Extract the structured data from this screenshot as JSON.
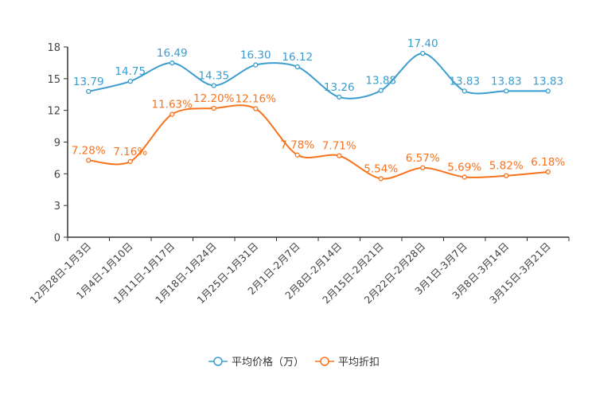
{
  "chart_data": {
    "type": "line",
    "title": "",
    "xlabel": "",
    "ylabel": "",
    "ylim": [
      0,
      18
    ],
    "yticks": [
      "0",
      "3",
      "6",
      "9",
      "12",
      "15",
      "18"
    ],
    "grid": false,
    "legend_position": "bottom",
    "categories": [
      "12月28日-1月3日",
      "1月4日-1月10日",
      "1月11日-1月17日",
      "1月18日-1月24日",
      "1月25日-1月31日",
      "2月1日-2月7日",
      "2月8日-2月14日",
      "2月15日-2月21日",
      "2月22日-2月28日",
      "3月1日-3月7日",
      "3月8日-3月14日",
      "3月15日-3月21日"
    ],
    "series": [
      {
        "name": "平均价格（万）",
        "color": "#3a9dd0",
        "values": [
          13.79,
          14.75,
          16.49,
          14.35,
          16.3,
          16.12,
          13.26,
          13.88,
          17.4,
          13.83,
          13.83,
          13.83
        ],
        "labels": [
          "13.79",
          "14.75",
          "16.49",
          "14.35",
          "16.30",
          "16.12",
          "13.26",
          "13.88",
          "17.40",
          "13.83",
          "13.83",
          "13.83"
        ]
      },
      {
        "name": "平均折扣",
        "color": "#f7731c",
        "values": [
          7.28,
          7.16,
          11.63,
          12.2,
          12.16,
          7.78,
          7.71,
          5.54,
          6.57,
          5.69,
          5.82,
          6.18
        ],
        "labels": [
          "7.28%",
          "7.16%",
          "11.63%",
          "12.20%",
          "12.16%",
          "7.78%",
          "7.71%",
          "5.54%",
          "6.57%",
          "5.69%",
          "5.82%",
          "6.18%"
        ]
      }
    ]
  }
}
